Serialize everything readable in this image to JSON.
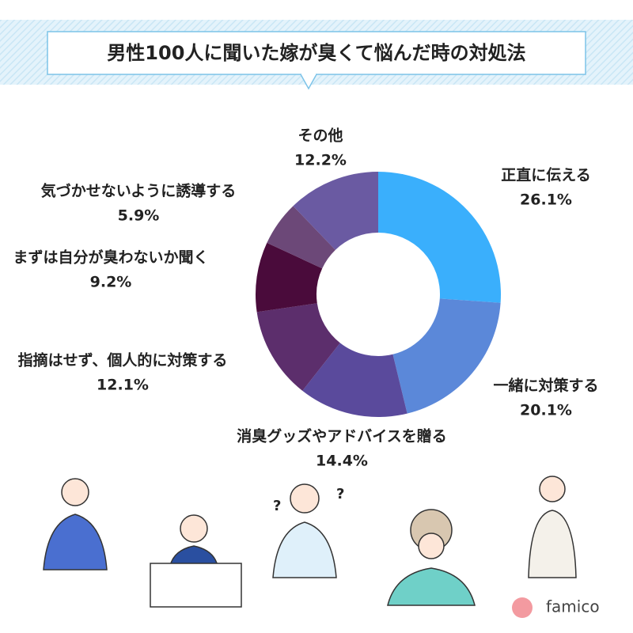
{
  "chart_data": {
    "type": "pie",
    "donut": true,
    "title": "男性100人に聞いた嫁が臭くて悩んだ時の対処法",
    "categories": [
      "正直に伝える",
      "一緒に対策する",
      "消臭グッズやアドバイスを贈る",
      "指摘はせず、個人的に対策する",
      "まずは自分が臭わないか聞く",
      "気づかせないように誘導する",
      "その他"
    ],
    "values": [
      26.1,
      20.1,
      14.4,
      12.1,
      9.2,
      5.9,
      12.2
    ],
    "value_labels": [
      "26.1%",
      "20.1%",
      "14.4%",
      "12.1%",
      "9.2%",
      "5.9%",
      "12.2%"
    ],
    "colors": [
      "#3aaffc",
      "#5b88d9",
      "#5a4a9c",
      "#5c2e6c",
      "#4a0b3b",
      "#6c4878",
      "#6a5aa2"
    ]
  },
  "logo": "famico"
}
